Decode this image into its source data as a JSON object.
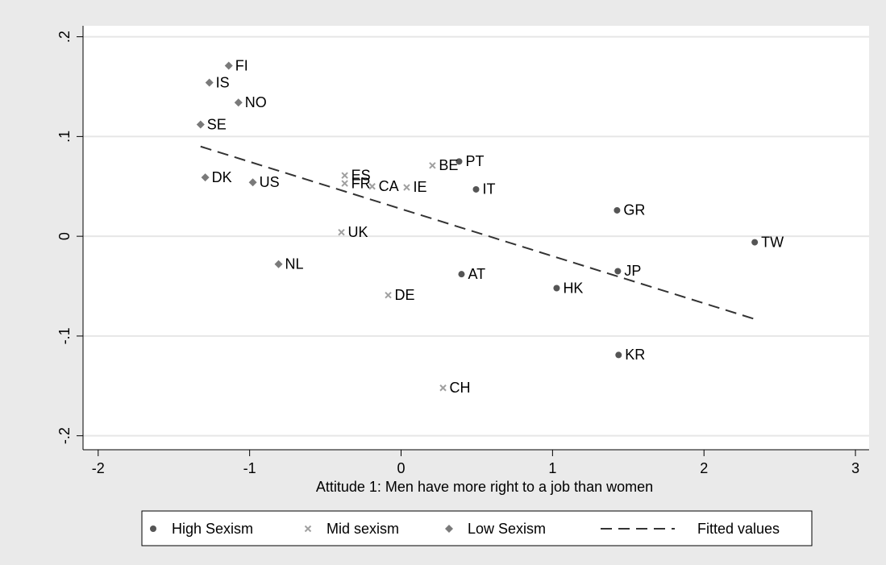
{
  "chart_data": {
    "type": "scatter",
    "x_label": "Attitude 1: Men have more right to a job than women",
    "xlim": [
      -2.1,
      3.09
    ],
    "xticks": [
      -2,
      -1,
      0,
      1,
      2,
      3
    ],
    "ylim": [
      -0.214,
      0.211
    ],
    "yticks": [
      {
        "value": 0.2,
        "label": ".2"
      },
      {
        "value": 0.1,
        "label": ".1"
      },
      0,
      {
        "value": -0.1,
        "label": "-.1"
      },
      {
        "value": -0.2,
        "label": "-.2"
      }
    ],
    "grid": "y",
    "legend": "bottom",
    "series": [
      {
        "name": "High Sexism",
        "color": "#555555",
        "marker": "circle",
        "labels": [
          "PT",
          "IT",
          "GR",
          "TW",
          "JP",
          "AT",
          "HK",
          "KR"
        ],
        "x": [
          0.383,
          0.495,
          1.426,
          2.335,
          1.431,
          0.399,
          1.027,
          1.436
        ],
        "values": [
          0.075,
          0.047,
          0.026,
          -0.006,
          -0.035,
          -0.038,
          -0.052,
          -0.119
        ]
      },
      {
        "name": "Mid sexism",
        "color": "#a0a0a0",
        "marker": "x",
        "labels": [
          "BE",
          "ES",
          "FR",
          "CA",
          "IE",
          "UK",
          "DE",
          "CH"
        ],
        "x": [
          0.207,
          -0.372,
          -0.372,
          -0.191,
          0.037,
          -0.394,
          -0.085,
          0.277
        ],
        "values": [
          0.071,
          0.061,
          0.053,
          0.05,
          0.049,
          0.004,
          -0.059,
          -0.152
        ]
      },
      {
        "name": "Low Sexism",
        "color": "#7a7a7a",
        "marker": "diamond",
        "labels": [
          "FI",
          "IS",
          "NO",
          "SE",
          "DK",
          "US",
          "NL"
        ],
        "x": [
          -1.138,
          -1.266,
          -1.074,
          -1.324,
          -1.293,
          -0.979,
          -0.809
        ],
        "values": [
          0.171,
          0.154,
          0.134,
          0.112,
          0.059,
          0.054,
          -0.028
        ]
      },
      {
        "name": "Fitted values",
        "color": "#333333",
        "marker": "dash-line",
        "x": [
          -1.324,
          2.335
        ],
        "values": [
          0.09,
          -0.083
        ]
      }
    ]
  }
}
